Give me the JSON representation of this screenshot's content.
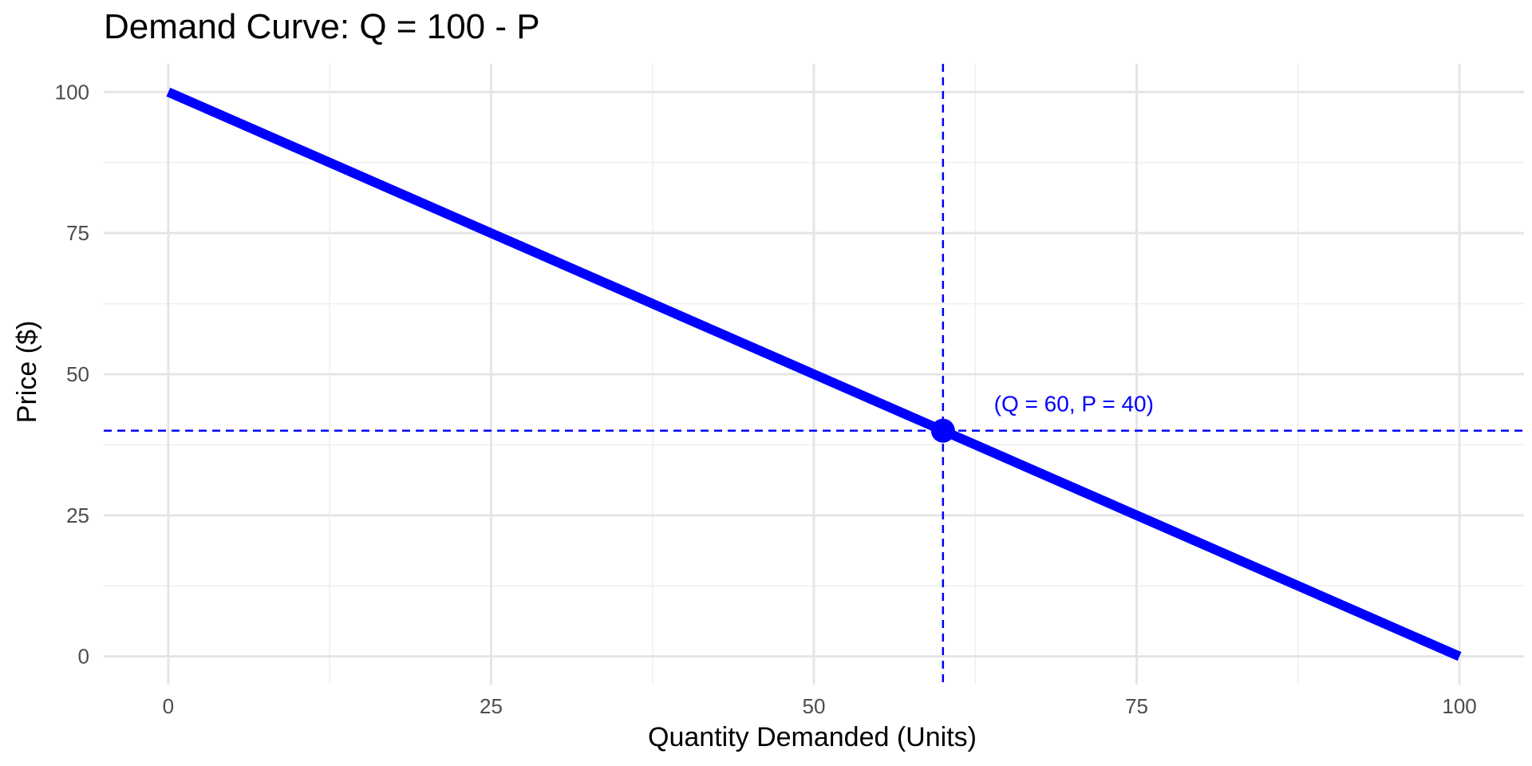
{
  "chart_data": {
    "type": "line",
    "title": "Demand Curve: Q = 100 - P",
    "xlabel": "Quantity Demanded (Units)",
    "ylabel": "Price ($)",
    "xlim": [
      -5,
      105
    ],
    "ylim": [
      -5,
      105
    ],
    "x_ticks": [
      0,
      25,
      50,
      75,
      100
    ],
    "y_ticks": [
      0,
      25,
      50,
      75,
      100
    ],
    "x_minor_ticks": [
      12.5,
      37.5,
      62.5,
      87.5
    ],
    "y_minor_ticks": [
      12.5,
      37.5,
      62.5,
      87.5
    ],
    "grid": true,
    "series": [
      {
        "x": [
          0,
          100
        ],
        "y": [
          100,
          0
        ],
        "color": "#0000ff"
      }
    ],
    "highlight_point": {
      "x": 60,
      "y": 40,
      "label": "(Q = 60, P = 40)",
      "color": "#0000ff"
    },
    "reference_lines": {
      "vertical_x": 60,
      "horizontal_y": 40,
      "style": "dashed",
      "color": "#0000ff"
    },
    "colors": {
      "grid_major": "#e5e5e5",
      "grid_minor": "#efefef",
      "line": "#0000ff"
    }
  }
}
